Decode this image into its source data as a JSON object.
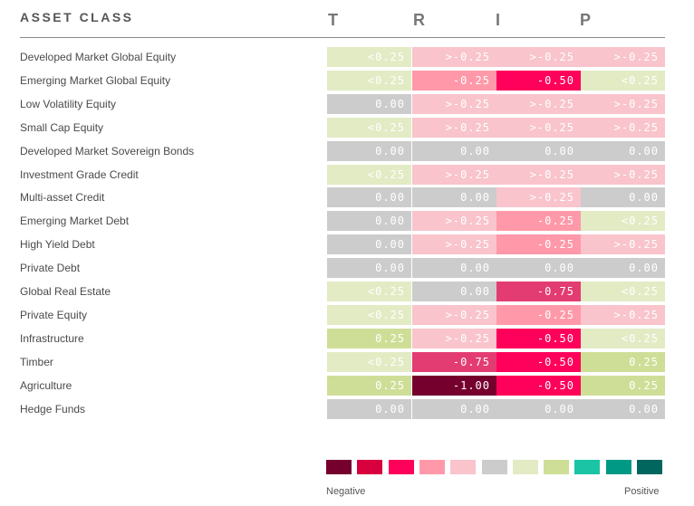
{
  "header": {
    "title": "ASSET CLASS",
    "columns": [
      "T",
      "R",
      "I",
      "P"
    ]
  },
  "colors": {
    "neg_100": "#76002d",
    "neg_075": "#e33c72",
    "neg_050": "#ff005a",
    "neg_025": "#ff99a9",
    "neg_small": "#f9c4cc",
    "zero": "#cccccc",
    "pos_small": "#e2ebc4",
    "pos_025": "#cfde97",
    "text_light": "#ffffff",
    "text_dark": "#ffffff"
  },
  "chart_data": {
    "type": "heatmap",
    "title": "",
    "columns": [
      "T",
      "R",
      "I",
      "P"
    ],
    "rows": [
      "Developed Market Global Equity",
      "Emerging Market Global Equity",
      "Low Volatility Equity",
      "Small Cap Equity",
      "Developed Market Sovereign Bonds",
      "Investment Grade Credit",
      "Multi-asset Credit",
      "Emerging Market Debt",
      "High Yield Debt",
      "Private Debt",
      "Global Real Estate",
      "Private Equity",
      "Infrastructure",
      "Timber",
      "Agriculture",
      "Hedge Funds"
    ],
    "values": [
      [
        "<0.25",
        ">-0.25",
        ">-0.25",
        ">-0.25"
      ],
      [
        "<0.25",
        "-0.25",
        "-0.50",
        "<0.25"
      ],
      [
        "0.00",
        ">-0.25",
        ">-0.25",
        ">-0.25"
      ],
      [
        "<0.25",
        ">-0.25",
        ">-0.25",
        ">-0.25"
      ],
      [
        "0.00",
        "0.00",
        "0.00",
        "0.00"
      ],
      [
        "<0.25",
        ">-0.25",
        ">-0.25",
        ">-0.25"
      ],
      [
        "0.00",
        "0.00",
        ">-0.25",
        "0.00"
      ],
      [
        "0.00",
        ">-0.25",
        "-0.25",
        "<0.25"
      ],
      [
        "0.00",
        ">-0.25",
        "-0.25",
        ">-0.25"
      ],
      [
        "0.00",
        "0.00",
        "0.00",
        "0.00"
      ],
      [
        "<0.25",
        "0.00",
        "-0.75",
        "<0.25"
      ],
      [
        "<0.25",
        ">-0.25",
        "-0.25",
        ">-0.25"
      ],
      [
        "0.25",
        ">-0.25",
        "-0.50",
        "<0.25"
      ],
      [
        "<0.25",
        "-0.75",
        "-0.50",
        "0.25"
      ],
      [
        "0.25",
        "-1.00",
        "-0.50",
        "0.25"
      ],
      [
        "0.00",
        "0.00",
        "0.00",
        "0.00"
      ]
    ]
  },
  "legend": {
    "colors": [
      "#76002d",
      "#d9003f",
      "#ff005a",
      "#ff99a9",
      "#f9c4cc",
      "#cccccc",
      "#e2ebc4",
      "#cfde97",
      "#1cc4a6",
      "#009985",
      "#00665e"
    ],
    "negative_label": "Negative",
    "positive_label": "Positive"
  }
}
